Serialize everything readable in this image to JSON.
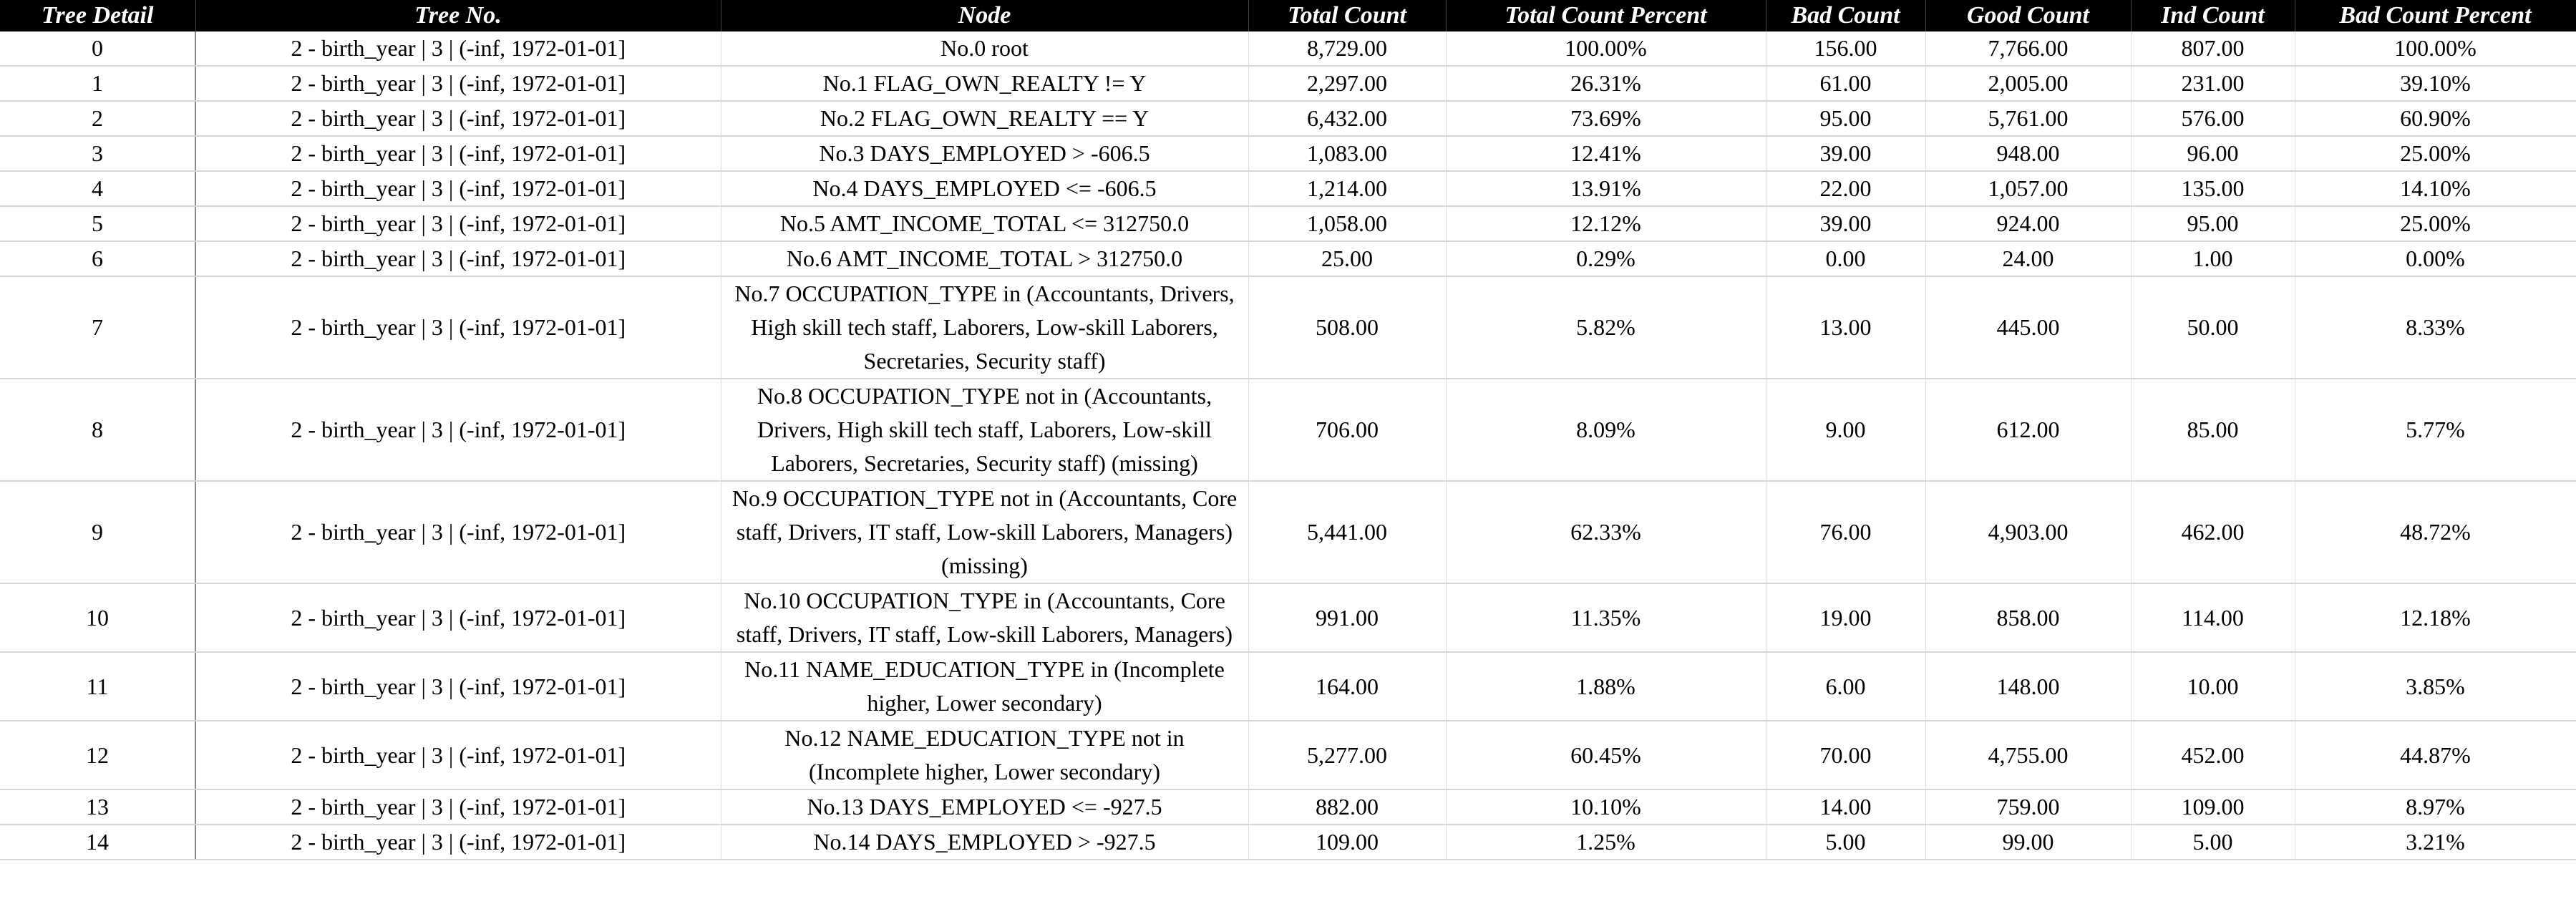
{
  "columns": [
    "Tree Detail",
    "Tree No.",
    "Node",
    "Total Count",
    "Total Count Percent",
    "Bad Count",
    "Good Count",
    "Ind Count",
    "Bad Count Percent"
  ],
  "rows": [
    [
      "0",
      "2 - birth_year | 3 | (-inf, 1972-01-01]",
      "No.0 root",
      "8,729.00",
      "100.00%",
      "156.00",
      "7,766.00",
      "807.00",
      "100.00%"
    ],
    [
      "1",
      "2 - birth_year | 3 | (-inf, 1972-01-01]",
      "No.1 FLAG_OWN_REALTY != Y",
      "2,297.00",
      "26.31%",
      "61.00",
      "2,005.00",
      "231.00",
      "39.10%"
    ],
    [
      "2",
      "2 - birth_year | 3 | (-inf, 1972-01-01]",
      "No.2 FLAG_OWN_REALTY == Y",
      "6,432.00",
      "73.69%",
      "95.00",
      "5,761.00",
      "576.00",
      "60.90%"
    ],
    [
      "3",
      "2 - birth_year | 3 | (-inf, 1972-01-01]",
      "No.3 DAYS_EMPLOYED > -606.5",
      "1,083.00",
      "12.41%",
      "39.00",
      "948.00",
      "96.00",
      "25.00%"
    ],
    [
      "4",
      "2 - birth_year | 3 | (-inf, 1972-01-01]",
      "No.4 DAYS_EMPLOYED <= -606.5",
      "1,214.00",
      "13.91%",
      "22.00",
      "1,057.00",
      "135.00",
      "14.10%"
    ],
    [
      "5",
      "2 - birth_year | 3 | (-inf, 1972-01-01]",
      "No.5 AMT_INCOME_TOTAL <= 312750.0",
      "1,058.00",
      "12.12%",
      "39.00",
      "924.00",
      "95.00",
      "25.00%"
    ],
    [
      "6",
      "2 - birth_year | 3 | (-inf, 1972-01-01]",
      "No.6 AMT_INCOME_TOTAL > 312750.0",
      "25.00",
      "0.29%",
      "0.00",
      "24.00",
      "1.00",
      "0.00%"
    ],
    [
      "7",
      "2 - birth_year | 3 | (-inf, 1972-01-01]",
      "No.7 OCCUPATION_TYPE in (Accountants, Drivers, High skill tech staff, Laborers, Low-skill Laborers, Secretaries, Security staff)",
      "508.00",
      "5.82%",
      "13.00",
      "445.00",
      "50.00",
      "8.33%"
    ],
    [
      "8",
      "2 - birth_year | 3 | (-inf, 1972-01-01]",
      "No.8 OCCUPATION_TYPE not in (Accountants, Drivers, High skill tech staff, Laborers, Low-skill Laborers, Secretaries, Security staff) (missing)",
      "706.00",
      "8.09%",
      "9.00",
      "612.00",
      "85.00",
      "5.77%"
    ],
    [
      "9",
      "2 - birth_year | 3 | (-inf, 1972-01-01]",
      "No.9 OCCUPATION_TYPE not in (Accountants, Core staff, Drivers, IT staff, Low-skill Laborers, Managers) (missing)",
      "5,441.00",
      "62.33%",
      "76.00",
      "4,903.00",
      "462.00",
      "48.72%"
    ],
    [
      "10",
      "2 - birth_year | 3 | (-inf, 1972-01-01]",
      "No.10 OCCUPATION_TYPE in (Accountants, Core staff, Drivers, IT staff, Low-skill Laborers, Managers)",
      "991.00",
      "11.35%",
      "19.00",
      "858.00",
      "114.00",
      "12.18%"
    ],
    [
      "11",
      "2 - birth_year | 3 | (-inf, 1972-01-01]",
      "No.11 NAME_EDUCATION_TYPE in (Incomplete higher, Lower secondary)",
      "164.00",
      "1.88%",
      "6.00",
      "148.00",
      "10.00",
      "3.85%"
    ],
    [
      "12",
      "2 - birth_year | 3 | (-inf, 1972-01-01]",
      "No.12 NAME_EDUCATION_TYPE not in (Incomplete higher, Lower secondary)",
      "5,277.00",
      "60.45%",
      "70.00",
      "4,755.00",
      "452.00",
      "44.87%"
    ],
    [
      "13",
      "2 - birth_year | 3 | (-inf, 1972-01-01]",
      "No.13 DAYS_EMPLOYED <= -927.5",
      "882.00",
      "10.10%",
      "14.00",
      "759.00",
      "109.00",
      "8.97%"
    ],
    [
      "14",
      "2 - birth_year | 3 | (-inf, 1972-01-01]",
      "No.14 DAYS_EMPLOYED > -927.5",
      "109.00",
      "1.25%",
      "5.00",
      "99.00",
      "5.00",
      "3.21%"
    ]
  ],
  "colors": {
    "header_bg": "#000000",
    "header_text": "#ffffff",
    "grid": "#d6d6d6"
  }
}
